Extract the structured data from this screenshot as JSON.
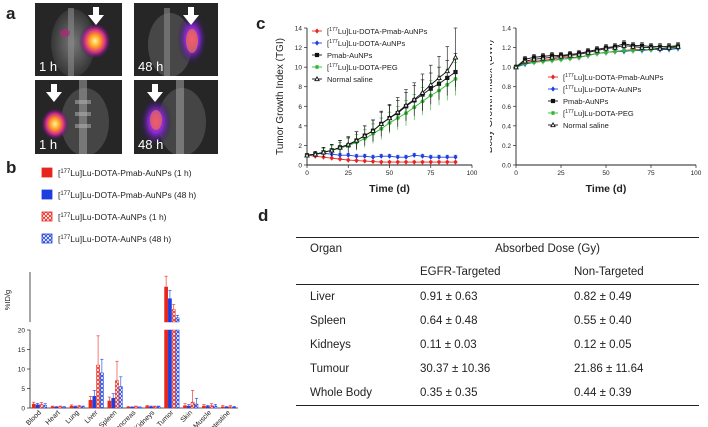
{
  "panel_labels": {
    "a": "a",
    "b": "b",
    "c": "c",
    "d": "d"
  },
  "panel_a": {
    "scans": [
      {
        "time": "1 h"
      },
      {
        "time": "48 h"
      },
      {
        "time": "1 h"
      },
      {
        "time": "48 h"
      }
    ]
  },
  "chart_data": [
    {
      "id": "panel_b",
      "type": "bar",
      "title": "",
      "xlabel": "",
      "ylabel": "%ID/g",
      "axis_break": {
        "lower_ylim": [
          0,
          20
        ],
        "upper_ylim": [
          50,
          650
        ],
        "lower_ticks": [
          0,
          5,
          10,
          15,
          20
        ]
      },
      "categories": [
        "Blood",
        "Heart",
        "Lung",
        "Liver",
        "Spleen",
        "Pancreas",
        "Kidneys",
        "Tumor",
        "Skin",
        "Muscle",
        "Small intestine"
      ],
      "series": [
        {
          "name": "[177Lu]Lu-DOTA-Pmab-AuNPs (1 h)",
          "legend_prefix": "[",
          "legend_sup": "177",
          "legend_rest": "Lu]Lu-DOTA-Pmab-AuNPs (1 h)",
          "color": "#e8261d",
          "pattern": "solid",
          "values": [
            1.0,
            0.3,
            0.5,
            2.0,
            1.8,
            0.2,
            0.4,
            470,
            0.6,
            0.5,
            0.3
          ],
          "errors": [
            0.5,
            0.2,
            0.3,
            1.0,
            1.0,
            0.2,
            0.3,
            130,
            0.5,
            0.4,
            0.3
          ]
        },
        {
          "name": "[177Lu]Lu-DOTA-Pmab-AuNPs (48 h)",
          "legend_prefix": "[",
          "legend_sup": "177",
          "legend_rest": "Lu]Lu-DOTA-Pmab-AuNPs (48 h)",
          "color": "#1d3fe0",
          "pattern": "solid",
          "values": [
            0.8,
            0.2,
            0.3,
            3.0,
            2.5,
            0.2,
            0.3,
            330,
            0.5,
            0.4,
            0.2
          ],
          "errors": [
            0.4,
            0.2,
            0.2,
            1.5,
            1.2,
            0.1,
            0.2,
            100,
            0.4,
            0.3,
            0.2
          ]
        },
        {
          "name": "[177Lu]Lu-DOTA-AuNPs (1 h)",
          "legend_prefix": "[",
          "legend_sup": "177",
          "legend_rest": "Lu]Lu-DOTA-AuNPs (1 h)",
          "color": "#e8261d",
          "pattern": "hatched",
          "values": [
            0.9,
            0.3,
            0.4,
            11.0,
            7.0,
            0.3,
            0.3,
            200,
            1.5,
            0.6,
            0.3
          ],
          "errors": [
            0.5,
            0.2,
            0.3,
            7.5,
            5.0,
            0.2,
            0.2,
            60,
            3.0,
            0.5,
            0.3
          ]
        },
        {
          "name": "[177Lu]Lu-DOTA-AuNPs (48 h)",
          "legend_prefix": "[",
          "legend_sup": "177",
          "legend_rest": "Lu]Lu-DOTA-AuNPs (48 h)",
          "color": "#1d3fe0",
          "pattern": "hatched",
          "values": [
            0.7,
            0.2,
            0.3,
            9.0,
            5.5,
            0.2,
            0.3,
            100,
            1.0,
            0.5,
            0.2
          ],
          "errors": [
            0.4,
            0.2,
            0.2,
            3.5,
            2.5,
            0.1,
            0.2,
            30,
            1.5,
            0.4,
            0.2
          ]
        }
      ]
    },
    {
      "id": "panel_c_tgi",
      "type": "line",
      "title": "",
      "xlabel": "Time (d)",
      "ylabel": "Tumor Growth Index (TGI)",
      "xlim": [
        0,
        100
      ],
      "ylim": [
        0,
        14
      ],
      "xticks": [
        0,
        25,
        50,
        75,
        100
      ],
      "yticks": [
        0,
        2,
        4,
        6,
        8,
        10,
        12,
        14
      ],
      "legend_position": "top-left",
      "x": [
        0,
        5,
        10,
        15,
        20,
        25,
        30,
        35,
        40,
        45,
        50,
        55,
        60,
        65,
        70,
        75,
        80,
        85,
        90
      ],
      "series": [
        {
          "name": "[177Lu]Lu-DOTA-Pmab-AuNPs",
          "legend_prefix": "[",
          "legend_sup": "177",
          "legend_rest": "Lu]Lu-DOTA-Pmab-AuNPs",
          "color": "#e8261d",
          "marker": "diamond",
          "values": [
            1.0,
            0.9,
            0.8,
            0.7,
            0.6,
            0.5,
            0.45,
            0.4,
            0.35,
            0.3,
            0.3,
            0.3,
            0.3,
            0.3,
            0.3,
            0.3,
            0.3,
            0.3,
            0.3
          ],
          "errors": [
            0.1,
            0.1,
            0.1,
            0.1,
            0.1,
            0.1,
            0.1,
            0.1,
            0.1,
            0.1,
            0.1,
            0.1,
            0.1,
            0.1,
            0.1,
            0.1,
            0.1,
            0.1,
            0.1
          ]
        },
        {
          "name": "[177Lu]Lu-DOTA-AuNPs",
          "legend_prefix": "[",
          "legend_sup": "177",
          "legend_rest": "Lu]Lu-DOTA-AuNPs",
          "color": "#1d3fe0",
          "marker": "diamond",
          "values": [
            1.0,
            1.1,
            1.2,
            1.1,
            1.0,
            1.0,
            0.9,
            0.9,
            0.8,
            0.9,
            0.9,
            0.8,
            0.8,
            1.0,
            0.9,
            0.8,
            0.8,
            0.8,
            0.8
          ],
          "errors": [
            0.1,
            0.2,
            0.2,
            0.2,
            0.2,
            0.2,
            0.2,
            0.2,
            0.2,
            0.2,
            0.2,
            0.2,
            0.2,
            0.2,
            0.2,
            0.2,
            0.2,
            0.2,
            0.2
          ]
        },
        {
          "name": "Pmab-AuNPs",
          "legend_prefix": "",
          "legend_sup": "",
          "legend_rest": "Pmab-AuNPs",
          "color": "#111111",
          "marker": "square",
          "values": [
            1.0,
            1.1,
            1.3,
            1.5,
            1.8,
            2.0,
            2.5,
            3.0,
            3.5,
            4.2,
            4.8,
            5.3,
            6.0,
            6.6,
            7.2,
            7.8,
            8.3,
            8.9,
            9.5
          ],
          "errors": [
            0.1,
            0.3,
            0.5,
            0.6,
            0.7,
            0.8,
            0.9,
            1.0,
            1.1,
            1.2,
            1.3,
            1.3,
            1.4,
            1.5,
            1.5,
            1.6,
            1.7,
            1.8,
            1.9
          ]
        },
        {
          "name": "[177Lu]Lu-DOTA-PEG",
          "legend_prefix": "[",
          "legend_sup": "177",
          "legend_rest": "Lu]Lu-DOTA-PEG",
          "color": "#2fb52f",
          "marker": "star",
          "values": [
            1.0,
            1.1,
            1.3,
            1.5,
            1.7,
            2.0,
            2.3,
            2.7,
            3.2,
            3.7,
            4.3,
            4.8,
            5.3,
            5.9,
            6.5,
            7.1,
            7.6,
            8.2,
            8.8
          ],
          "errors": [
            0.1,
            0.3,
            0.4,
            0.5,
            0.6,
            0.7,
            0.8,
            0.9,
            1.0,
            1.1,
            1.1,
            1.2,
            1.3,
            1.3,
            1.4,
            1.5,
            1.5,
            1.6,
            1.7
          ]
        },
        {
          "name": "Normal saline",
          "legend_prefix": "",
          "legend_sup": "",
          "legend_rest": "Normal saline",
          "color": "#111111",
          "marker": "triangle-open",
          "values": [
            1.0,
            1.1,
            1.3,
            1.5,
            1.8,
            2.1,
            2.5,
            3.0,
            3.5,
            4.2,
            4.8,
            5.4,
            6.1,
            6.7,
            7.4,
            8.2,
            8.9,
            9.6,
            11.0
          ],
          "errors": [
            0.1,
            0.3,
            0.5,
            0.6,
            0.7,
            0.8,
            0.9,
            1.0,
            1.1,
            1.3,
            1.4,
            1.5,
            1.6,
            1.7,
            1.9,
            2.0,
            2.2,
            2.5,
            3.0
          ]
        }
      ]
    },
    {
      "id": "panel_c_bwi",
      "type": "line",
      "title": "",
      "xlabel": "Time (d)",
      "ylabel": "Body Growth Index (BWI)",
      "xlim": [
        0,
        100
      ],
      "ylim": [
        0,
        1.4
      ],
      "xticks": [
        0,
        25,
        50,
        75,
        100
      ],
      "yticks": [
        0,
        0.2,
        0.4,
        0.6,
        0.8,
        1.0,
        1.2,
        1.4
      ],
      "ytick_labels": [
        "0.0",
        "0.2",
        "0.4",
        "0.6",
        "0.8",
        "1.0",
        "1.2",
        "1.4"
      ],
      "legend_position": "center-right",
      "x": [
        0,
        5,
        10,
        15,
        20,
        25,
        30,
        35,
        40,
        45,
        50,
        55,
        60,
        65,
        70,
        75,
        80,
        85,
        90
      ],
      "series": [
        {
          "name": "[177Lu]Lu-DOTA-Pmab-AuNPs",
          "legend_prefix": "[",
          "legend_sup": "177",
          "legend_rest": "Lu]Lu-DOTA-Pmab-AuNPs",
          "color": "#e8261d",
          "marker": "diamond",
          "values": [
            1.0,
            1.05,
            1.06,
            1.07,
            1.08,
            1.1,
            1.1,
            1.1,
            1.12,
            1.14,
            1.15,
            1.16,
            1.17,
            1.18,
            1.18,
            1.18,
            1.18,
            1.19,
            1.2
          ],
          "errors": [
            0.02,
            0.03,
            0.03,
            0.03,
            0.03,
            0.03,
            0.03,
            0.03,
            0.03,
            0.03,
            0.03,
            0.03,
            0.03,
            0.03,
            0.03,
            0.03,
            0.03,
            0.03,
            0.03
          ]
        },
        {
          "name": "[177Lu]Lu-DOTA-AuNPs",
          "legend_prefix": "[",
          "legend_sup": "177",
          "legend_rest": "Lu]Lu-DOTA-AuNPs",
          "color": "#1d3fe0",
          "marker": "diamond",
          "values": [
            1.0,
            1.03,
            1.05,
            1.06,
            1.07,
            1.08,
            1.09,
            1.1,
            1.12,
            1.14,
            1.15,
            1.16,
            1.16,
            1.17,
            1.17,
            1.18,
            1.18,
            1.18,
            1.19
          ],
          "errors": [
            0.02,
            0.03,
            0.03,
            0.03,
            0.03,
            0.03,
            0.03,
            0.03,
            0.03,
            0.03,
            0.03,
            0.03,
            0.03,
            0.03,
            0.03,
            0.03,
            0.03,
            0.03,
            0.03
          ]
        },
        {
          "name": "Pmab-AuNPs",
          "legend_prefix": "",
          "legend_sup": "",
          "legend_rest": "Pmab-AuNPs",
          "color": "#111111",
          "marker": "square",
          "values": [
            1.0,
            1.08,
            1.1,
            1.11,
            1.12,
            1.12,
            1.13,
            1.14,
            1.16,
            1.18,
            1.2,
            1.21,
            1.24,
            1.22,
            1.22,
            1.21,
            1.21,
            1.21,
            1.22
          ],
          "errors": [
            0.02,
            0.03,
            0.03,
            0.03,
            0.03,
            0.03,
            0.03,
            0.03,
            0.03,
            0.03,
            0.03,
            0.03,
            0.03,
            0.03,
            0.03,
            0.03,
            0.03,
            0.03,
            0.03
          ]
        },
        {
          "name": "[177Lu]Lu-DOTA-PEG",
          "legend_prefix": "[",
          "legend_sup": "177",
          "legend_rest": "Lu]Lu-DOTA-PEG",
          "color": "#2fb52f",
          "marker": "star",
          "values": [
            1.0,
            1.04,
            1.05,
            1.06,
            1.07,
            1.08,
            1.09,
            1.1,
            1.12,
            1.14,
            1.15,
            1.16,
            1.17,
            1.17,
            1.18,
            1.18,
            1.19,
            1.19,
            1.2
          ],
          "errors": [
            0.02,
            0.03,
            0.03,
            0.03,
            0.03,
            0.03,
            0.03,
            0.03,
            0.03,
            0.03,
            0.03,
            0.03,
            0.03,
            0.03,
            0.03,
            0.03,
            0.03,
            0.03,
            0.03
          ]
        },
        {
          "name": "Normal saline",
          "legend_prefix": "",
          "legend_sup": "",
          "legend_rest": "Normal saline",
          "color": "#111111",
          "marker": "triangle-open",
          "values": [
            1.0,
            1.06,
            1.08,
            1.09,
            1.1,
            1.11,
            1.12,
            1.13,
            1.15,
            1.17,
            1.19,
            1.2,
            1.22,
            1.21,
            1.2,
            1.2,
            1.19,
            1.2,
            1.21
          ],
          "errors": [
            0.02,
            0.03,
            0.03,
            0.03,
            0.03,
            0.03,
            0.03,
            0.03,
            0.03,
            0.03,
            0.03,
            0.03,
            0.03,
            0.03,
            0.03,
            0.03,
            0.03,
            0.03,
            0.03
          ]
        }
      ]
    }
  ],
  "table": {
    "organ_header": "Organ",
    "dose_header": "Absorbed Dose (Gy)",
    "col_targeted": "EGFR-Targeted",
    "col_nontargeted": "Non-Targeted",
    "rows": [
      {
        "organ": "Liver",
        "targeted": "0.91 ± 0.63",
        "nontargeted": "0.82 ± 0.49"
      },
      {
        "organ": "Spleen",
        "targeted": "0.64 ± 0.48",
        "nontargeted": "0.55 ± 0.40"
      },
      {
        "organ": "Kidneys",
        "targeted": "0.11 ± 0.03",
        "nontargeted": "0.12 ± 0.05"
      },
      {
        "organ": "Tumour",
        "targeted": "30.37 ± 10.36",
        "nontargeted": "21.86 ± 11.64"
      },
      {
        "organ": "Whole Body",
        "targeted": "0.35 ± 0.35",
        "nontargeted": "0.44 ± 0.39"
      }
    ]
  }
}
